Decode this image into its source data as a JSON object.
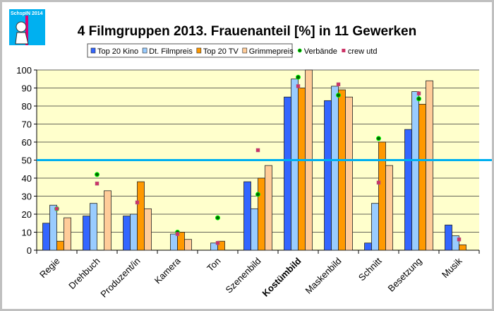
{
  "logo": {
    "text": "SchspIN 2014"
  },
  "chart_data": {
    "type": "bar",
    "title": "4 Filmgruppen 2013. Frauenanteil [%] in 11 Gewerken",
    "categories": [
      "Regie",
      "Drehbuch",
      "Produzent/in",
      "Kamera",
      "Ton",
      "Szenenbild",
      "Kostümbild",
      "Maskenbild",
      "Schnitt",
      "Besetzung",
      "Musik"
    ],
    "bold_category": "Kostümbild",
    "ylim": [
      0,
      100
    ],
    "yticks": [
      0,
      10,
      20,
      30,
      40,
      50,
      60,
      70,
      80,
      90,
      100
    ],
    "grid": true,
    "legend_placement": "top-center",
    "reference_line": {
      "value": 50,
      "color": "#00B0F0"
    },
    "plot_background": "#FFFFCC",
    "series": [
      {
        "name": "Top 20 Kino",
        "kind": "bar",
        "color": "#3366FF",
        "values": [
          15,
          19,
          19,
          0,
          0,
          38,
          85,
          83,
          4,
          67,
          14
        ]
      },
      {
        "name": "Dt. Filmpreis",
        "kind": "bar",
        "color": "#99CCFF",
        "values": [
          25,
          26,
          20,
          9,
          4,
          23,
          95,
          91,
          26,
          88,
          8
        ]
      },
      {
        "name": "Top 20 TV",
        "kind": "bar",
        "color": "#FF9900",
        "values": [
          5,
          0,
          38,
          10,
          5,
          40,
          90,
          89,
          60,
          81,
          3
        ]
      },
      {
        "name": "Grimmepreis",
        "kind": "bar",
        "color": "#FFCC99",
        "values": [
          18,
          33,
          23,
          6,
          0,
          47,
          100,
          85,
          47,
          94,
          0
        ]
      },
      {
        "name": "Verbände",
        "kind": "marker",
        "shape": "circle",
        "color": "#006600",
        "values": [
          23,
          42,
          null,
          10,
          18,
          31,
          96,
          86,
          62,
          84,
          null
        ]
      },
      {
        "name": "crew utd",
        "kind": "marker",
        "shape": "square",
        "color": "#CC3366",
        "values": [
          23,
          37,
          26.5,
          9,
          4,
          55.5,
          91,
          92,
          37.5,
          87,
          6
        ]
      }
    ]
  }
}
